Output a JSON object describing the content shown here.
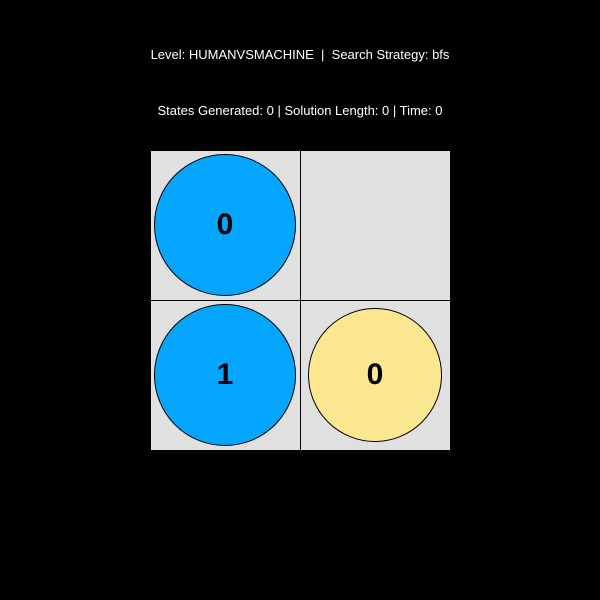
{
  "header": {
    "level_line": "Level: HUMANVSMACHINE  |  Search Strategy: bfs",
    "stats_line": "States Generated: 0 | Solution Length: 0 | Time: 0"
  },
  "board": {
    "background_color": "#e0e0e0",
    "cells": {
      "r0c0": {
        "token_value": "0",
        "token_color": "#03a5ff"
      },
      "r0c1": {
        "token_value": null,
        "token_color": null
      },
      "r1c0": {
        "token_value": "1",
        "token_color": "#03a5ff"
      },
      "r1c1": {
        "token_value": "0",
        "token_color": "#fde892"
      }
    }
  }
}
